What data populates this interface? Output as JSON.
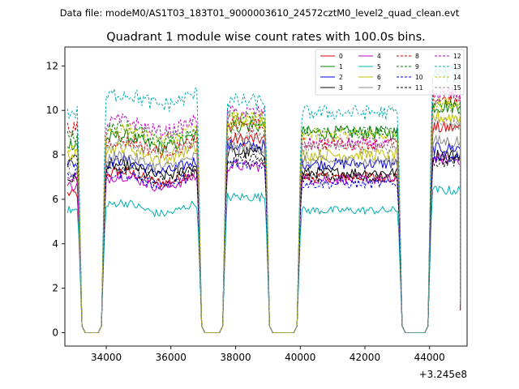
{
  "figure": {
    "suptitle": "Data file: modeM0/AS1T03_183T01_9000003610_24572cztM0_level2_quad_clean.evt",
    "title": "Quadrant 1 module wise count rates with 100.0s bins.",
    "offset_label": "+3.245e8"
  },
  "chart_data": {
    "type": "line",
    "title": "Quadrant 1 module wise count rates with 100.0s bins.",
    "xlabel": "",
    "ylabel": "",
    "x_offset": 324500000,
    "xlim": [
      32720,
      45160
    ],
    "ylim": [
      -0.6,
      12.85
    ],
    "xticks": [
      34000,
      36000,
      38000,
      40000,
      42000,
      44000
    ],
    "xtick_labels": [
      "34000",
      "36000",
      "38000",
      "40000",
      "42000",
      "44000"
    ],
    "yticks": [
      0,
      2,
      4,
      6,
      8,
      10,
      12
    ],
    "ytick_labels": [
      "0",
      "2",
      "4",
      "6",
      "8",
      "10",
      "12"
    ],
    "legend_position": "top-right",
    "legend_columns": 4,
    "bin_seconds": 100.0,
    "segments": [
      [
        32800,
        33250
      ],
      [
        33850,
        36950
      ],
      [
        37600,
        39050
      ],
      [
        39900,
        43150
      ],
      [
        43950,
        44950
      ]
    ],
    "gaps": [
      [
        33350,
        33750
      ],
      [
        37050,
        37500
      ],
      [
        39150,
        39800
      ],
      [
        43250,
        43850
      ]
    ],
    "series": [
      {
        "name": "0",
        "color": "#e00000",
        "dash": "solid",
        "levels": [
          6.25,
          7.0,
          8.7,
          7.0,
          9.2
        ]
      },
      {
        "name": "1",
        "color": "#008000",
        "dash": "solid",
        "levels": [
          8.5,
          8.6,
          9.3,
          9.0,
          10.2
        ]
      },
      {
        "name": "2",
        "color": "#0000ee",
        "dash": "solid",
        "levels": [
          7.6,
          7.5,
          8.4,
          7.6,
          8.3
        ]
      },
      {
        "name": "3",
        "color": "#000000",
        "dash": "solid",
        "levels": [
          6.9,
          7.3,
          8.1,
          7.2,
          8.0
        ]
      },
      {
        "name": "4",
        "color": "#c000c0",
        "dash": "solid",
        "levels": [
          6.6,
          6.8,
          7.5,
          6.9,
          7.8
        ]
      },
      {
        "name": "5",
        "color": "#00b0b0",
        "dash": "solid",
        "levels": [
          5.5,
          5.6,
          6.1,
          5.5,
          6.4
        ]
      },
      {
        "name": "6",
        "color": "#c0c000",
        "dash": "solid",
        "levels": [
          8.0,
          8.1,
          9.5,
          8.0,
          9.7
        ]
      },
      {
        "name": "7",
        "color": "#8c8c8c",
        "dash": "solid",
        "levels": [
          7.2,
          7.7,
          8.3,
          7.7,
          8.6
        ]
      },
      {
        "name": "8",
        "color": "#e00000",
        "dash": "dashed",
        "levels": [
          9.2,
          8.4,
          9.3,
          8.5,
          10.5
        ]
      },
      {
        "name": "9",
        "color": "#008000",
        "dash": "dashed",
        "levels": [
          8.8,
          9.0,
          9.6,
          9.0,
          10.3
        ]
      },
      {
        "name": "10",
        "color": "#0000ee",
        "dash": "dashed",
        "levels": [
          7.2,
          6.9,
          7.6,
          6.7,
          7.9
        ]
      },
      {
        "name": "11",
        "color": "#000000",
        "dash": "dashed",
        "levels": [
          7.8,
          7.1,
          7.8,
          7.0,
          7.7
        ]
      },
      {
        "name": "12",
        "color": "#c000c0",
        "dash": "dashed",
        "levels": [
          7.0,
          9.3,
          9.9,
          8.5,
          10.7
        ]
      },
      {
        "name": "13",
        "color": "#00b0b0",
        "dash": "dashed",
        "levels": [
          9.9,
          10.5,
          10.4,
          9.9,
          11.6
        ]
      },
      {
        "name": "14",
        "color": "#c0c000",
        "dash": "dashed",
        "levels": [
          8.3,
          8.9,
          9.6,
          8.9,
          10.3
        ]
      },
      {
        "name": "15",
        "color": "#8c8c8c",
        "dash": "dashed",
        "levels": [
          7.6,
          8.3,
          8.9,
          8.3,
          9.4
        ]
      }
    ]
  }
}
